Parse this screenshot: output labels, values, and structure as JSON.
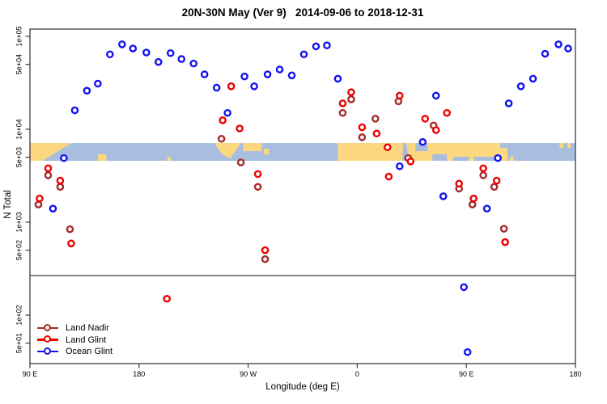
{
  "title": "20N-30N May (Ver 9)   2014-09-06 to 2018-12-31",
  "chart_data": {
    "type": "scatter",
    "title": "20N-30N May (Ver 9)   2014-09-06 to 2018-12-31",
    "xlabel": "Longitude (deg E)",
    "ylabel": "N Total",
    "x_axis": {
      "range": [
        90,
        540
      ],
      "ticks": [
        90,
        180,
        270,
        360,
        450,
        540
      ],
      "tick_labels": [
        "90 E",
        "180",
        "90 W",
        "0",
        "90 E",
        "180"
      ]
    },
    "y_axis": {
      "scale": "log",
      "range": [
        30,
        120000
      ],
      "ticks": [
        100000,
        50000,
        10000,
        5000,
        1000,
        500,
        100,
        50
      ],
      "tick_labels": [
        "1e+05",
        "5e+04",
        "1e+04",
        "5e+03",
        "1e+03",
        "5e+02",
        "1e+02",
        "5e+01"
      ]
    },
    "grid": false,
    "threshold_line_n": 266,
    "map_strip": {
      "description": "land/ocean strip for 20N-30N latitude band drawn across plot",
      "n_value_range": [
        4580,
        7100
      ],
      "land_color": "#FBD87F",
      "ocean_color": "#A9BEDF",
      "land_segments": [
        {
          "lon0": 90,
          "lon1": 124,
          "part": "taper-right"
        },
        {
          "lon0": 146,
          "lon1": 153,
          "part": "bottom"
        },
        {
          "lon0": 203.5,
          "lon1": 206,
          "part": "bottom-thin"
        },
        {
          "lon0": 242,
          "lon1": 264,
          "part": "wedge"
        },
        {
          "lon0": 266,
          "lon1": 281,
          "part": "top"
        },
        {
          "lon0": 283,
          "lon1": 287,
          "part": "mid"
        },
        {
          "lon0": 344,
          "lon1": 484,
          "part": "full"
        },
        {
          "lon0": 486,
          "lon1": 489,
          "part": "bottom-thin"
        },
        {
          "lon0": 527,
          "lon1": 530,
          "part": "top-thin"
        },
        {
          "lon0": 533.5,
          "lon1": 536,
          "part": "top-thin"
        }
      ],
      "ocean_insets": [
        {
          "lon0": 396.5,
          "lon1": 402.5,
          "part": "slant"
        },
        {
          "lon0": 408,
          "lon1": 418,
          "part": "top"
        },
        {
          "lon0": 422,
          "lon1": 434,
          "part": "bottom"
        },
        {
          "lon0": 439,
          "lon1": 452,
          "part": "bottom-thin"
        },
        {
          "lon0": 456,
          "lon1": 474,
          "part": "bottom-thin"
        },
        {
          "lon0": 478,
          "lon1": 484,
          "part": "top-thin"
        }
      ]
    },
    "legend": {
      "position": "bottom-left"
    },
    "series": [
      {
        "name": "Land Nadir",
        "color": "#A52A2A",
        "points": [
          [
            105,
            3200
          ],
          [
            115,
            2400
          ],
          [
            97,
            1550
          ],
          [
            123,
            840
          ],
          [
            248,
            7900
          ],
          [
            264,
            4400
          ],
          [
            278,
            2400
          ],
          [
            284,
            400
          ],
          [
            355,
            21000
          ],
          [
            348,
            15000
          ],
          [
            375,
            13000
          ],
          [
            364,
            8200
          ],
          [
            394,
            20000
          ],
          [
            423,
            11000
          ],
          [
            402,
            4900
          ],
          [
            464,
            3200
          ],
          [
            444,
            2300
          ],
          [
            473,
            2400
          ],
          [
            455,
            1550
          ],
          [
            481,
            850
          ]
        ]
      },
      {
        "name": "Land Glint",
        "color": "#EE0000",
        "points": [
          [
            105,
            3800
          ],
          [
            115,
            2800
          ],
          [
            98,
            1800
          ],
          [
            124,
            590
          ],
          [
            256,
            29000
          ],
          [
            249,
            12500
          ],
          [
            263,
            10200
          ],
          [
            278,
            3300
          ],
          [
            284,
            500
          ],
          [
            203,
            150
          ],
          [
            355,
            25000
          ],
          [
            348,
            19000
          ],
          [
            364,
            10500
          ],
          [
            376,
            9000
          ],
          [
            385,
            6400
          ],
          [
            395,
            23000
          ],
          [
            416,
            13000
          ],
          [
            425,
            9800
          ],
          [
            434,
            15000
          ],
          [
            404,
            4500
          ],
          [
            464,
            3800
          ],
          [
            444,
            2600
          ],
          [
            475,
            2800
          ],
          [
            456,
            1800
          ],
          [
            482,
            610
          ],
          [
            386,
            3100
          ]
        ]
      },
      {
        "name": "Ocean Glint",
        "color": "#1414EE",
        "points": [
          [
            127,
            16000
          ],
          [
            137,
            26000
          ],
          [
            146,
            31000
          ],
          [
            156,
            64000
          ],
          [
            166,
            82000
          ],
          [
            175,
            74000
          ],
          [
            186,
            67000
          ],
          [
            196,
            53000
          ],
          [
            206,
            66000
          ],
          [
            215,
            57000
          ],
          [
            225,
            51000
          ],
          [
            234,
            39000
          ],
          [
            244,
            28000
          ],
          [
            253,
            15000
          ],
          [
            267,
            37000
          ],
          [
            275,
            29000
          ],
          [
            286,
            39000
          ],
          [
            296,
            44000
          ],
          [
            306,
            38000
          ],
          [
            316,
            64000
          ],
          [
            326,
            78000
          ],
          [
            335,
            80000
          ],
          [
            344,
            35000
          ],
          [
            118,
            4900
          ],
          [
            109,
            1400
          ],
          [
            395,
            4000
          ],
          [
            414,
            7300
          ],
          [
            425,
            23000
          ],
          [
            431,
            1900
          ],
          [
            467,
            1400
          ],
          [
            476,
            4900
          ],
          [
            485,
            19000
          ],
          [
            495,
            29000
          ],
          [
            505,
            35000
          ],
          [
            515,
            65000
          ],
          [
            526,
            82000
          ],
          [
            534,
            74000
          ],
          [
            448,
            200
          ],
          [
            451,
            40
          ]
        ]
      }
    ],
    "colors": {
      "box": "#3C3C3C",
      "text": "#000000",
      "background": "#FFFFFF"
    }
  }
}
